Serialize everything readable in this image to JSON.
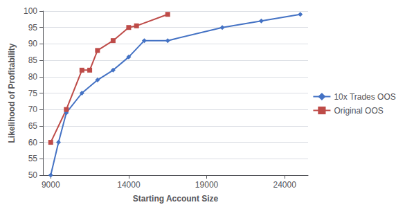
{
  "chart_data": {
    "type": "line",
    "xlabel": "Starting Account Size",
    "ylabel": "Likelihood of Profitability",
    "series": [
      {
        "name": "10x Trades OOS",
        "color": "#4472C4",
        "marker": "diamond",
        "x": [
          9000,
          9500,
          10000,
          11000,
          12000,
          13000,
          14000,
          15000,
          16500,
          20000,
          22500,
          25000
        ],
        "values": [
          50,
          60,
          69,
          75,
          79,
          82,
          86,
          91,
          91,
          95,
          97,
          99
        ]
      },
      {
        "name": "Original OOS",
        "color": "#BE4B48",
        "marker": "square",
        "x": [
          9000,
          10000,
          11000,
          11500,
          12000,
          13000,
          14000,
          14500,
          16500
        ],
        "values": [
          60,
          70,
          82,
          82,
          88,
          91,
          95,
          95.5,
          99
        ]
      }
    ],
    "xlim": [
      8500,
      25500
    ],
    "xticks": [
      9000,
      14000,
      19000,
      24000
    ],
    "ylim": [
      50,
      100
    ],
    "yticks": [
      50,
      55,
      60,
      65,
      70,
      75,
      80,
      85,
      90,
      95,
      100
    ],
    "grid": true,
    "legend": "right"
  }
}
